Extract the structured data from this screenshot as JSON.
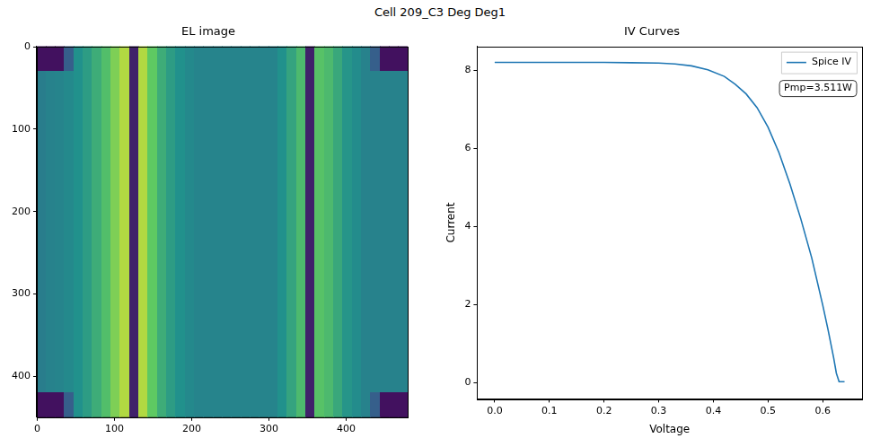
{
  "title": "Cell 209_C3 Deg Deg1",
  "chart_data": [
    {
      "type": "heatmap",
      "title": "EL image",
      "xlim": [
        -0.5,
        479.5
      ],
      "ylim": [
        449.5,
        -0.5
      ],
      "xticks": [
        0,
        100,
        200,
        300,
        400
      ],
      "yticks": [
        0,
        100,
        200,
        300,
        400
      ],
      "grid": false,
      "cells": [
        [
          0.05,
          0.05,
          0.05,
          0.3,
          0.5,
          0.55,
          0.62,
          0.7,
          0.8,
          0.88,
          0.1,
          0.88,
          0.75,
          0.62,
          0.55,
          0.5,
          0.47,
          0.45,
          0.45,
          0.45,
          0.45,
          0.45,
          0.45,
          0.45,
          0.45,
          0.45,
          0.5,
          0.58,
          0.68,
          0.1,
          0.72,
          0.68,
          0.6,
          0.52,
          0.48,
          0.44,
          0.3,
          0.05,
          0.05,
          0.05
        ],
        [
          0.42,
          0.44,
          0.45,
          0.47,
          0.5,
          0.55,
          0.62,
          0.7,
          0.8,
          0.88,
          0.1,
          0.88,
          0.75,
          0.62,
          0.55,
          0.5,
          0.47,
          0.45,
          0.45,
          0.45,
          0.45,
          0.45,
          0.45,
          0.45,
          0.45,
          0.45,
          0.5,
          0.58,
          0.68,
          0.1,
          0.72,
          0.68,
          0.6,
          0.52,
          0.48,
          0.44,
          0.44,
          0.44,
          0.44,
          0.44
        ],
        [
          0.42,
          0.44,
          0.45,
          0.47,
          0.5,
          0.55,
          0.62,
          0.7,
          0.8,
          0.88,
          0.1,
          0.88,
          0.75,
          0.62,
          0.55,
          0.5,
          0.47,
          0.45,
          0.45,
          0.45,
          0.45,
          0.45,
          0.45,
          0.45,
          0.45,
          0.45,
          0.5,
          0.58,
          0.68,
          0.1,
          0.72,
          0.68,
          0.6,
          0.52,
          0.48,
          0.44,
          0.44,
          0.44,
          0.44,
          0.44
        ],
        [
          0.42,
          0.44,
          0.45,
          0.47,
          0.5,
          0.55,
          0.62,
          0.7,
          0.8,
          0.88,
          0.1,
          0.88,
          0.75,
          0.62,
          0.55,
          0.5,
          0.47,
          0.45,
          0.45,
          0.45,
          0.45,
          0.45,
          0.45,
          0.45,
          0.45,
          0.45,
          0.5,
          0.58,
          0.68,
          0.1,
          0.72,
          0.68,
          0.6,
          0.52,
          0.48,
          0.44,
          0.44,
          0.44,
          0.44,
          0.44
        ],
        [
          0.42,
          0.44,
          0.45,
          0.47,
          0.5,
          0.55,
          0.62,
          0.7,
          0.8,
          0.88,
          0.1,
          0.88,
          0.75,
          0.62,
          0.55,
          0.5,
          0.47,
          0.45,
          0.45,
          0.45,
          0.45,
          0.45,
          0.45,
          0.45,
          0.45,
          0.45,
          0.5,
          0.58,
          0.68,
          0.1,
          0.72,
          0.68,
          0.6,
          0.52,
          0.48,
          0.44,
          0.44,
          0.44,
          0.44,
          0.44
        ],
        [
          0.42,
          0.44,
          0.45,
          0.47,
          0.5,
          0.55,
          0.62,
          0.7,
          0.8,
          0.88,
          0.1,
          0.88,
          0.75,
          0.62,
          0.55,
          0.5,
          0.47,
          0.45,
          0.45,
          0.45,
          0.45,
          0.45,
          0.45,
          0.45,
          0.45,
          0.45,
          0.5,
          0.58,
          0.68,
          0.1,
          0.72,
          0.68,
          0.6,
          0.52,
          0.48,
          0.44,
          0.44,
          0.44,
          0.44,
          0.44
        ],
        [
          0.42,
          0.44,
          0.45,
          0.47,
          0.5,
          0.55,
          0.62,
          0.7,
          0.8,
          0.88,
          0.1,
          0.88,
          0.75,
          0.62,
          0.55,
          0.5,
          0.47,
          0.45,
          0.45,
          0.45,
          0.45,
          0.45,
          0.45,
          0.45,
          0.45,
          0.45,
          0.5,
          0.58,
          0.68,
          0.1,
          0.72,
          0.68,
          0.6,
          0.52,
          0.48,
          0.44,
          0.44,
          0.44,
          0.44,
          0.44
        ],
        [
          0.42,
          0.44,
          0.45,
          0.47,
          0.5,
          0.55,
          0.62,
          0.7,
          0.8,
          0.88,
          0.1,
          0.88,
          0.75,
          0.62,
          0.55,
          0.5,
          0.47,
          0.45,
          0.45,
          0.45,
          0.45,
          0.45,
          0.45,
          0.45,
          0.45,
          0.45,
          0.5,
          0.58,
          0.68,
          0.1,
          0.72,
          0.68,
          0.6,
          0.52,
          0.48,
          0.44,
          0.44,
          0.44,
          0.44,
          0.44
        ],
        [
          0.42,
          0.44,
          0.45,
          0.47,
          0.5,
          0.55,
          0.62,
          0.7,
          0.8,
          0.88,
          0.1,
          0.88,
          0.75,
          0.62,
          0.55,
          0.5,
          0.47,
          0.45,
          0.45,
          0.45,
          0.45,
          0.45,
          0.45,
          0.45,
          0.45,
          0.45,
          0.5,
          0.58,
          0.68,
          0.1,
          0.72,
          0.68,
          0.6,
          0.52,
          0.48,
          0.44,
          0.44,
          0.44,
          0.44,
          0.44
        ],
        [
          0.42,
          0.44,
          0.45,
          0.47,
          0.5,
          0.55,
          0.62,
          0.7,
          0.8,
          0.88,
          0.1,
          0.88,
          0.75,
          0.62,
          0.55,
          0.5,
          0.47,
          0.45,
          0.45,
          0.45,
          0.45,
          0.45,
          0.45,
          0.45,
          0.45,
          0.45,
          0.5,
          0.58,
          0.68,
          0.1,
          0.72,
          0.68,
          0.6,
          0.52,
          0.48,
          0.44,
          0.44,
          0.44,
          0.44,
          0.44
        ],
        [
          0.42,
          0.44,
          0.45,
          0.47,
          0.5,
          0.55,
          0.62,
          0.7,
          0.8,
          0.88,
          0.1,
          0.88,
          0.75,
          0.62,
          0.55,
          0.5,
          0.47,
          0.45,
          0.45,
          0.45,
          0.45,
          0.45,
          0.45,
          0.45,
          0.45,
          0.45,
          0.5,
          0.58,
          0.68,
          0.1,
          0.72,
          0.68,
          0.6,
          0.52,
          0.48,
          0.44,
          0.44,
          0.44,
          0.44,
          0.44
        ],
        [
          0.42,
          0.44,
          0.45,
          0.47,
          0.5,
          0.55,
          0.62,
          0.7,
          0.8,
          0.88,
          0.1,
          0.88,
          0.75,
          0.62,
          0.55,
          0.5,
          0.47,
          0.45,
          0.45,
          0.45,
          0.45,
          0.45,
          0.45,
          0.45,
          0.45,
          0.45,
          0.5,
          0.58,
          0.68,
          0.1,
          0.72,
          0.68,
          0.6,
          0.52,
          0.48,
          0.44,
          0.44,
          0.44,
          0.44,
          0.44
        ],
        [
          0.42,
          0.44,
          0.45,
          0.47,
          0.5,
          0.55,
          0.62,
          0.7,
          0.8,
          0.88,
          0.1,
          0.88,
          0.75,
          0.62,
          0.55,
          0.5,
          0.47,
          0.45,
          0.45,
          0.45,
          0.45,
          0.45,
          0.45,
          0.45,
          0.45,
          0.45,
          0.5,
          0.58,
          0.68,
          0.1,
          0.72,
          0.68,
          0.6,
          0.52,
          0.48,
          0.44,
          0.44,
          0.44,
          0.44,
          0.44
        ],
        [
          0.42,
          0.44,
          0.45,
          0.47,
          0.5,
          0.55,
          0.62,
          0.7,
          0.8,
          0.88,
          0.1,
          0.88,
          0.75,
          0.62,
          0.55,
          0.5,
          0.47,
          0.45,
          0.45,
          0.45,
          0.45,
          0.45,
          0.45,
          0.45,
          0.45,
          0.45,
          0.5,
          0.58,
          0.68,
          0.1,
          0.72,
          0.68,
          0.6,
          0.52,
          0.48,
          0.44,
          0.44,
          0.44,
          0.44,
          0.44
        ],
        [
          0.05,
          0.05,
          0.05,
          0.3,
          0.5,
          0.55,
          0.62,
          0.7,
          0.8,
          0.88,
          0.1,
          0.88,
          0.75,
          0.62,
          0.55,
          0.5,
          0.47,
          0.45,
          0.45,
          0.45,
          0.45,
          0.45,
          0.45,
          0.45,
          0.45,
          0.45,
          0.5,
          0.58,
          0.68,
          0.1,
          0.72,
          0.68,
          0.6,
          0.52,
          0.48,
          0.44,
          0.3,
          0.05,
          0.05,
          0.05
        ]
      ]
    },
    {
      "type": "line",
      "title": "IV Curves",
      "x_label": "Voltage",
      "y_label": "Current",
      "x": [
        0,
        0.05,
        0.1,
        0.15,
        0.2,
        0.25,
        0.3,
        0.33,
        0.36,
        0.39,
        0.42,
        0.44,
        0.46,
        0.48,
        0.5,
        0.52,
        0.54,
        0.56,
        0.58,
        0.6,
        0.61,
        0.62,
        0.625,
        0.63,
        0.64
      ],
      "series": [
        {
          "name": "Spice IV",
          "color": "#1f77b4",
          "values": [
            8.21,
            8.21,
            8.21,
            8.21,
            8.21,
            8.2,
            8.19,
            8.17,
            8.12,
            8.02,
            7.85,
            7.65,
            7.4,
            7.05,
            6.55,
            5.9,
            5.1,
            4.2,
            3.2,
            2.0,
            1.35,
            0.65,
            0.25,
            0.03,
            0.03
          ]
        }
      ],
      "xlim": [
        -0.032,
        0.672
      ],
      "ylim": [
        -0.41,
        8.62
      ],
      "xticks": [
        {
          "value": 0,
          "label": "0.0"
        },
        0.1,
        0.2,
        0.3,
        0.4,
        0.5,
        0.6
      ],
      "yticks": [
        0,
        2,
        4,
        6,
        8
      ],
      "grid": false,
      "legend": "upper right",
      "annotations": [
        {
          "text": "Pmp=3.511W"
        }
      ]
    }
  ]
}
